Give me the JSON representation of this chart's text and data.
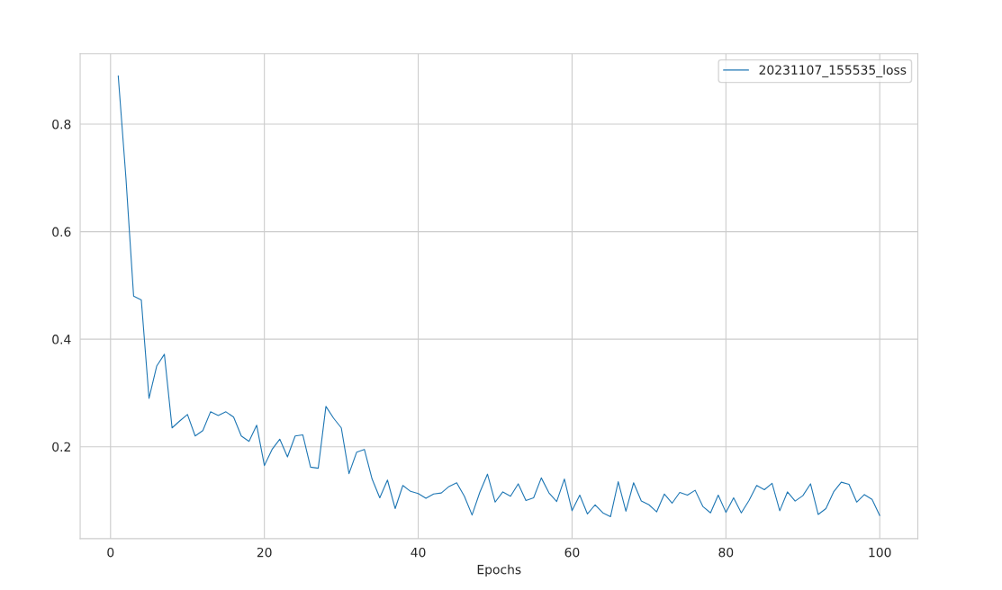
{
  "chart_data": {
    "type": "line",
    "xlabel": "Epochs",
    "x": [
      1,
      2,
      3,
      4,
      5,
      6,
      7,
      8,
      9,
      10,
      11,
      12,
      13,
      14,
      15,
      16,
      17,
      18,
      19,
      20,
      21,
      22,
      23,
      24,
      25,
      26,
      27,
      28,
      29,
      30,
      31,
      32,
      33,
      34,
      35,
      36,
      37,
      38,
      39,
      40,
      41,
      42,
      43,
      44,
      45,
      46,
      47,
      48,
      49,
      50,
      51,
      52,
      53,
      54,
      55,
      56,
      57,
      58,
      59,
      60,
      61,
      62,
      63,
      64,
      65,
      66,
      67,
      68,
      69,
      70,
      71,
      72,
      73,
      74,
      75,
      76,
      77,
      78,
      79,
      80,
      81,
      82,
      83,
      84,
      85,
      86,
      87,
      88,
      89,
      90,
      91,
      92,
      93,
      94,
      95,
      96,
      97,
      98,
      99,
      100
    ],
    "series": [
      {
        "name": "20231107_155535_loss",
        "color": "#1f77b4",
        "values": [
          0.89,
          0.7,
          0.48,
          0.473,
          0.29,
          0.35,
          0.372,
          0.235,
          0.248,
          0.26,
          0.22,
          0.23,
          0.265,
          0.258,
          0.265,
          0.255,
          0.22,
          0.21,
          0.24,
          0.165,
          0.195,
          0.214,
          0.181,
          0.22,
          0.222,
          0.162,
          0.16,
          0.275,
          0.253,
          0.235,
          0.15,
          0.19,
          0.195,
          0.14,
          0.105,
          0.138,
          0.085,
          0.128,
          0.117,
          0.113,
          0.104,
          0.112,
          0.114,
          0.126,
          0.133,
          0.108,
          0.073,
          0.115,
          0.149,
          0.097,
          0.116,
          0.108,
          0.131,
          0.1,
          0.105,
          0.142,
          0.114,
          0.098,
          0.14,
          0.081,
          0.11,
          0.075,
          0.092,
          0.077,
          0.07,
          0.135,
          0.08,
          0.133,
          0.099,
          0.092,
          0.079,
          0.112,
          0.095,
          0.115,
          0.11,
          0.119,
          0.089,
          0.077,
          0.11,
          0.078,
          0.105,
          0.077,
          0.1,
          0.128,
          0.12,
          0.132,
          0.081,
          0.116,
          0.099,
          0.109,
          0.131,
          0.074,
          0.085,
          0.116,
          0.134,
          0.13,
          0.097,
          0.111,
          0.102,
          0.072
        ]
      }
    ],
    "xlim": [
      -3.95,
      104.95
    ],
    "ylim": [
      0.029,
      0.931
    ],
    "xticks": [
      0,
      20,
      40,
      60,
      80,
      100
    ],
    "yticks": [
      0.2,
      0.4,
      0.6,
      0.8
    ],
    "grid": true,
    "legend": "top right",
    "marker": "none",
    "line_style": "solid"
  }
}
